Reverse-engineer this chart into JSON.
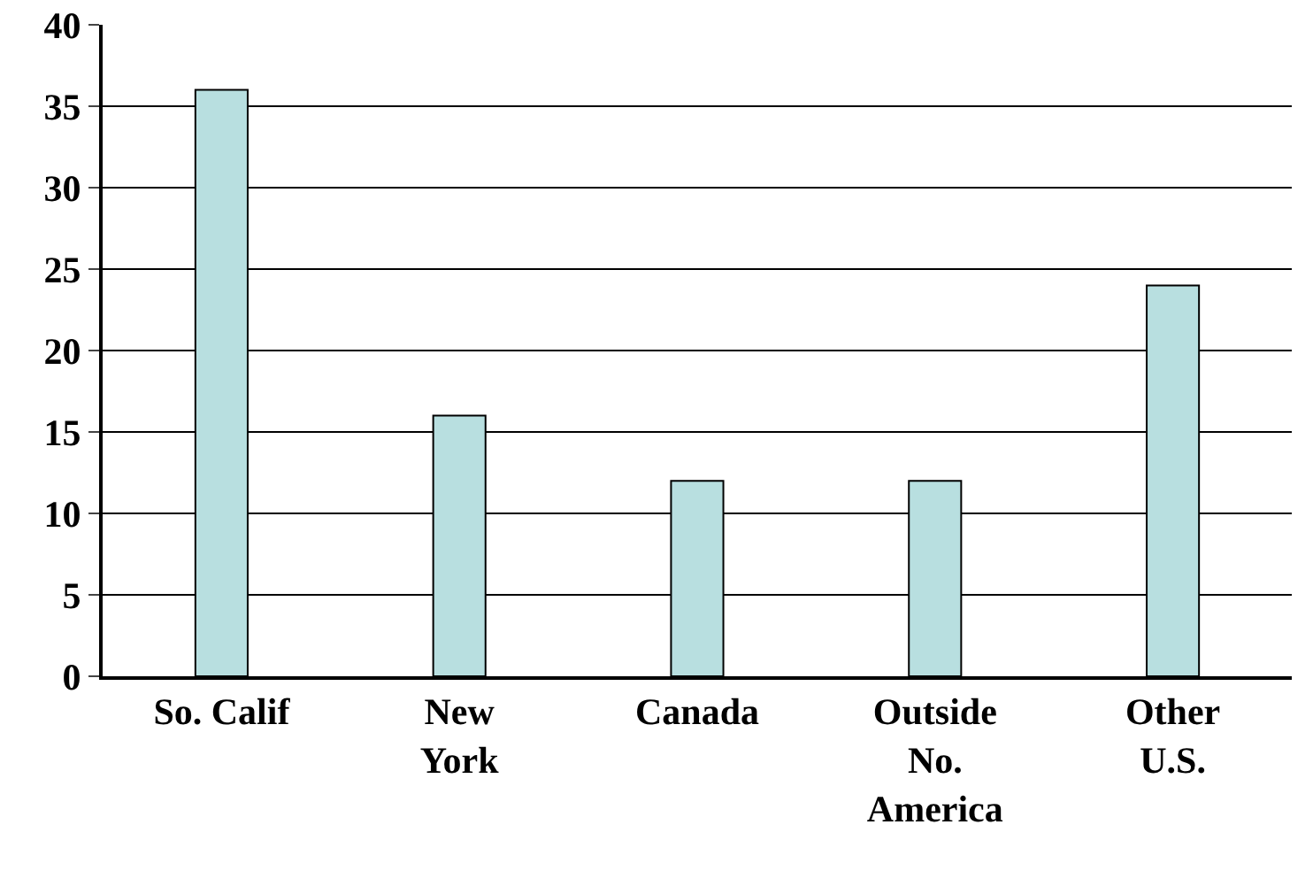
{
  "chart_data": {
    "type": "bar",
    "categories": [
      "So. Calif",
      "New\nYork",
      "Canada",
      "Outside\nNo.\nAmerica",
      "Other\nU.S."
    ],
    "values": [
      36,
      16,
      12,
      12,
      24
    ],
    "color": "#b8dfe0",
    "ylim": [
      0,
      40
    ],
    "yticks": [
      0,
      5,
      10,
      15,
      20,
      25,
      30,
      35,
      40
    ],
    "grid": "y"
  }
}
